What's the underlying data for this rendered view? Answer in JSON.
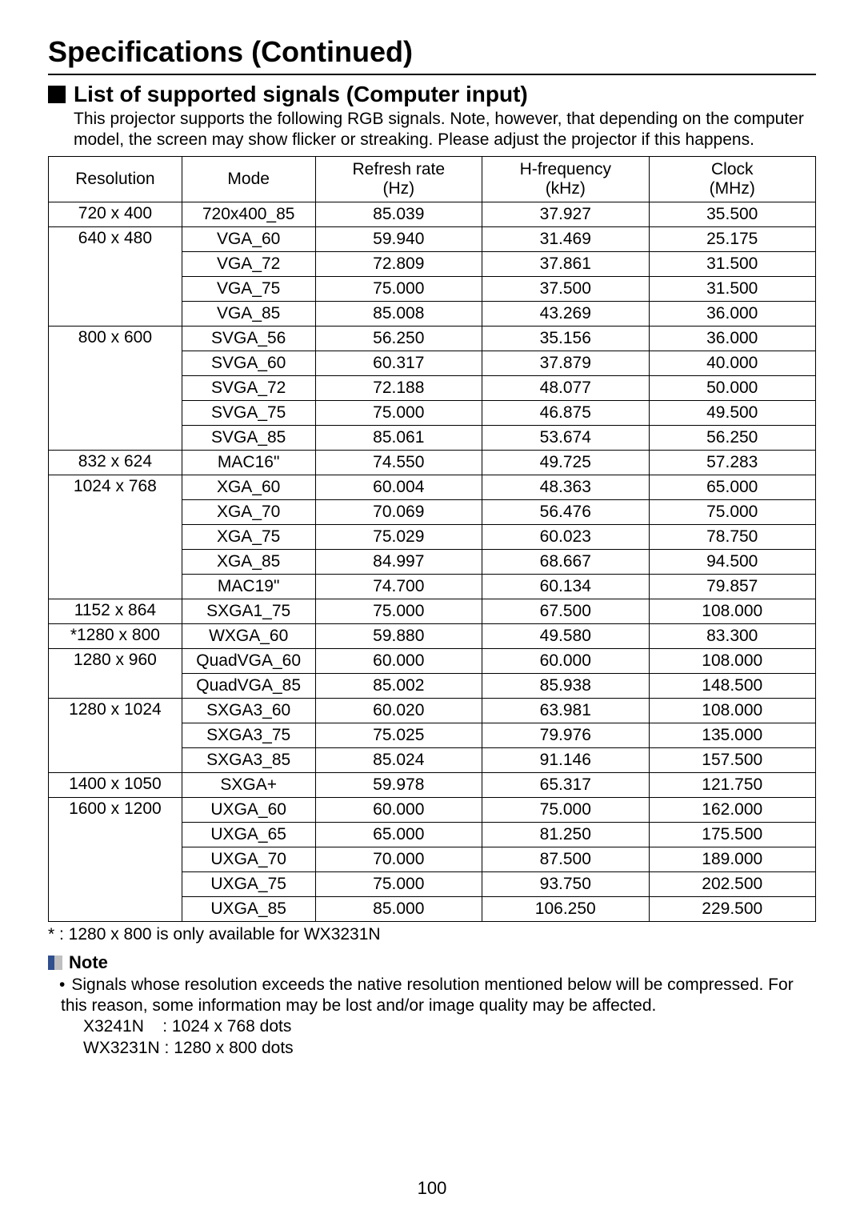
{
  "page_title": "Specifications (Continued)",
  "section_heading": "List of supported signals (Computer input)",
  "intro_text": "This projector supports the following RGB signals. Note, however, that depending on the computer model, the screen may show flicker or streaking. Please adjust the projector if this happens.",
  "table": {
    "columns": [
      {
        "line1": "Resolution",
        "line2": ""
      },
      {
        "line1": "Mode",
        "line2": ""
      },
      {
        "line1": "Refresh rate",
        "line2": "(Hz)"
      },
      {
        "line1": "H-frequency",
        "line2": "(kHz)"
      },
      {
        "line1": "Clock",
        "line2": "(MHz)"
      }
    ],
    "groups": [
      {
        "resolution": "720 x 400",
        "rows": [
          {
            "mode": "720x400_85",
            "refresh": "85.039",
            "hfreq": "37.927",
            "clock": "35.500"
          }
        ]
      },
      {
        "resolution": "640 x 480",
        "rows": [
          {
            "mode": "VGA_60",
            "refresh": "59.940",
            "hfreq": "31.469",
            "clock": "25.175"
          },
          {
            "mode": "VGA_72",
            "refresh": "72.809",
            "hfreq": "37.861",
            "clock": "31.500"
          },
          {
            "mode": "VGA_75",
            "refresh": "75.000",
            "hfreq": "37.500",
            "clock": "31.500"
          },
          {
            "mode": "VGA_85",
            "refresh": "85.008",
            "hfreq": "43.269",
            "clock": "36.000"
          }
        ]
      },
      {
        "resolution": "800 x 600",
        "rows": [
          {
            "mode": "SVGA_56",
            "refresh": "56.250",
            "hfreq": "35.156",
            "clock": "36.000"
          },
          {
            "mode": "SVGA_60",
            "refresh": "60.317",
            "hfreq": "37.879",
            "clock": "40.000"
          },
          {
            "mode": "SVGA_72",
            "refresh": "72.188",
            "hfreq": "48.077",
            "clock": "50.000"
          },
          {
            "mode": "SVGA_75",
            "refresh": "75.000",
            "hfreq": "46.875",
            "clock": "49.500"
          },
          {
            "mode": "SVGA_85",
            "refresh": "85.061",
            "hfreq": "53.674",
            "clock": "56.250"
          }
        ]
      },
      {
        "resolution": "832 x 624",
        "rows": [
          {
            "mode": "MAC16\"",
            "refresh": "74.550",
            "hfreq": "49.725",
            "clock": "57.283"
          }
        ]
      },
      {
        "resolution": "1024 x 768",
        "rows": [
          {
            "mode": "XGA_60",
            "refresh": "60.004",
            "hfreq": "48.363",
            "clock": "65.000"
          },
          {
            "mode": "XGA_70",
            "refresh": "70.069",
            "hfreq": "56.476",
            "clock": "75.000"
          },
          {
            "mode": "XGA_75",
            "refresh": "75.029",
            "hfreq": "60.023",
            "clock": "78.750"
          },
          {
            "mode": "XGA_85",
            "refresh": "84.997",
            "hfreq": "68.667",
            "clock": "94.500"
          },
          {
            "mode": "MAC19\"",
            "refresh": "74.700",
            "hfreq": "60.134",
            "clock": "79.857"
          }
        ]
      },
      {
        "resolution": "1152 x 864",
        "rows": [
          {
            "mode": "SXGA1_75",
            "refresh": "75.000",
            "hfreq": "67.500",
            "clock": "108.000"
          }
        ]
      },
      {
        "resolution": "*1280 x 800",
        "rows": [
          {
            "mode": "WXGA_60",
            "refresh": "59.880",
            "hfreq": "49.580",
            "clock": "83.300"
          }
        ]
      },
      {
        "resolution": "1280 x 960",
        "rows": [
          {
            "mode": "QuadVGA_60",
            "refresh": "60.000",
            "hfreq": "60.000",
            "clock": "108.000"
          },
          {
            "mode": "QuadVGA_85",
            "refresh": "85.002",
            "hfreq": "85.938",
            "clock": "148.500"
          }
        ]
      },
      {
        "resolution": "1280 x 1024",
        "rows": [
          {
            "mode": "SXGA3_60",
            "refresh": "60.020",
            "hfreq": "63.981",
            "clock": "108.000"
          },
          {
            "mode": "SXGA3_75",
            "refresh": "75.025",
            "hfreq": "79.976",
            "clock": "135.000"
          },
          {
            "mode": "SXGA3_85",
            "refresh": "85.024",
            "hfreq": "91.146",
            "clock": "157.500"
          }
        ]
      },
      {
        "resolution": "1400 x 1050",
        "rows": [
          {
            "mode": "SXGA+",
            "refresh": "59.978",
            "hfreq": "65.317",
            "clock": "121.750"
          }
        ]
      },
      {
        "resolution": "1600 x 1200",
        "rows": [
          {
            "mode": "UXGA_60",
            "refresh": "60.000",
            "hfreq": "75.000",
            "clock": "162.000"
          },
          {
            "mode": "UXGA_65",
            "refresh": "65.000",
            "hfreq": "81.250",
            "clock": "175.500"
          },
          {
            "mode": "UXGA_70",
            "refresh": "70.000",
            "hfreq": "87.500",
            "clock": "189.000"
          },
          {
            "mode": "UXGA_75",
            "refresh": "75.000",
            "hfreq": "93.750",
            "clock": "202.500"
          },
          {
            "mode": "UXGA_85",
            "refresh": "85.000",
            "hfreq": "106.250",
            "clock": "229.500"
          }
        ]
      }
    ]
  },
  "footnote": "* : 1280 x 800 is only available for WX3231N",
  "note_label": "Note",
  "note_bullet_text": "Signals whose resolution exceeds the native resolution mentioned below will be compressed. For this reason, some information may be lost and/or image quality may be affected.",
  "note_model_1": "X3241N    : 1024 x 768 dots",
  "note_model_2": "WX3231N : 1280 x 800 dots",
  "page_number": "100"
}
